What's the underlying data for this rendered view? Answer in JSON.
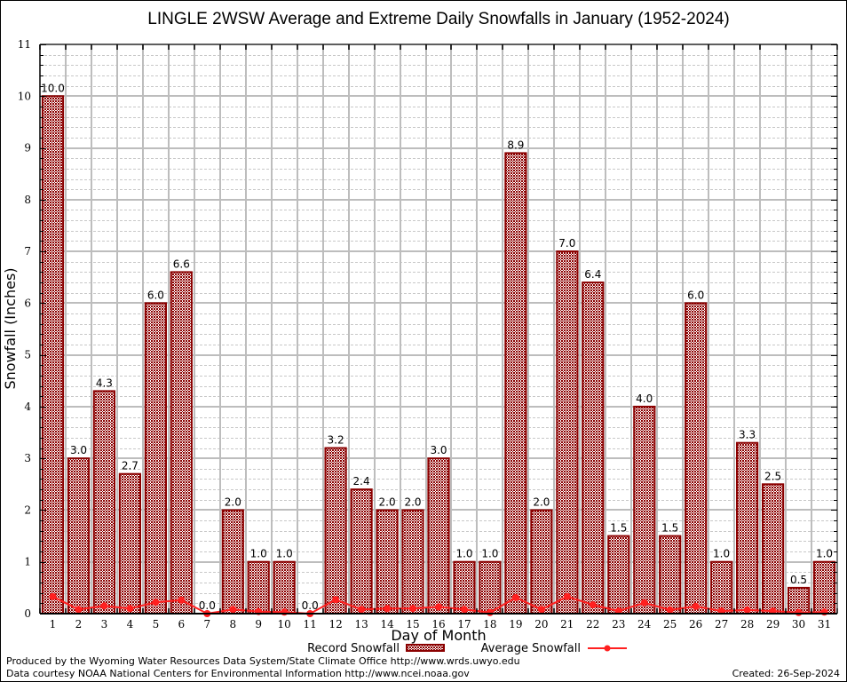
{
  "chart_data": {
    "type": "bar",
    "title": "LINGLE 2WSW Average and Extreme Daily Snowfalls in January (1952-2024)",
    "xlabel": "Day of Month",
    "ylabel": "Snowfall (Inches)",
    "ylim": [
      0,
      11
    ],
    "yticks": [
      "0",
      "1",
      "2",
      "3",
      "4",
      "5",
      "6",
      "7",
      "8",
      "9",
      "10",
      "11"
    ],
    "categories": [
      "1",
      "2",
      "3",
      "4",
      "5",
      "6",
      "7",
      "8",
      "9",
      "10",
      "11",
      "12",
      "13",
      "14",
      "15",
      "16",
      "17",
      "18",
      "19",
      "20",
      "21",
      "22",
      "23",
      "24",
      "25",
      "26",
      "27",
      "28",
      "29",
      "30",
      "31"
    ],
    "grid": true,
    "legend_position": "bottom",
    "series": [
      {
        "name": "Record Snowfall",
        "type": "bar",
        "color": "#8b0000",
        "values": [
          10.0,
          3.0,
          4.3,
          2.7,
          6.0,
          6.6,
          0.0,
          2.0,
          1.0,
          1.0,
          0.0,
          3.2,
          2.4,
          2.0,
          2.0,
          3.0,
          1.0,
          1.0,
          8.9,
          2.0,
          7.0,
          6.4,
          1.5,
          4.0,
          1.5,
          6.0,
          1.0,
          3.3,
          2.5,
          0.5,
          1.0
        ],
        "labels": [
          "10.0",
          "3.0",
          "4.3",
          "2.7",
          "6.0",
          "6.6",
          "0.0",
          "2.0",
          "1.0",
          "1.0",
          "0.0",
          "3.2",
          "2.4",
          "2.0",
          "2.0",
          "3.0",
          "1.0",
          "1.0",
          "8.9",
          "2.0",
          "7.0",
          "6.4",
          "1.5",
          "4.0",
          "1.5",
          "6.0",
          "1.0",
          "3.3",
          "2.5",
          "0.5",
          "1.0"
        ]
      },
      {
        "name": "Average Snowfall",
        "type": "line",
        "color": "#ff2020",
        "values": [
          0.33,
          0.08,
          0.15,
          0.1,
          0.22,
          0.26,
          0.0,
          0.08,
          0.04,
          0.03,
          0.0,
          0.27,
          0.08,
          0.1,
          0.1,
          0.13,
          0.08,
          0.02,
          0.31,
          0.08,
          0.33,
          0.17,
          0.05,
          0.21,
          0.07,
          0.14,
          0.05,
          0.07,
          0.05,
          0.02,
          0.03
        ]
      }
    ]
  },
  "footer": {
    "produced_by": "Produced by the Wyoming Water Resources Data System/State Climate Office http://www.wrds.uwyo.edu",
    "data_courtesy": "Data courtesy NOAA National Centers for Environmental Information http://www.ncei.noaa.gov",
    "created": "Created: 26-Sep-2024"
  }
}
